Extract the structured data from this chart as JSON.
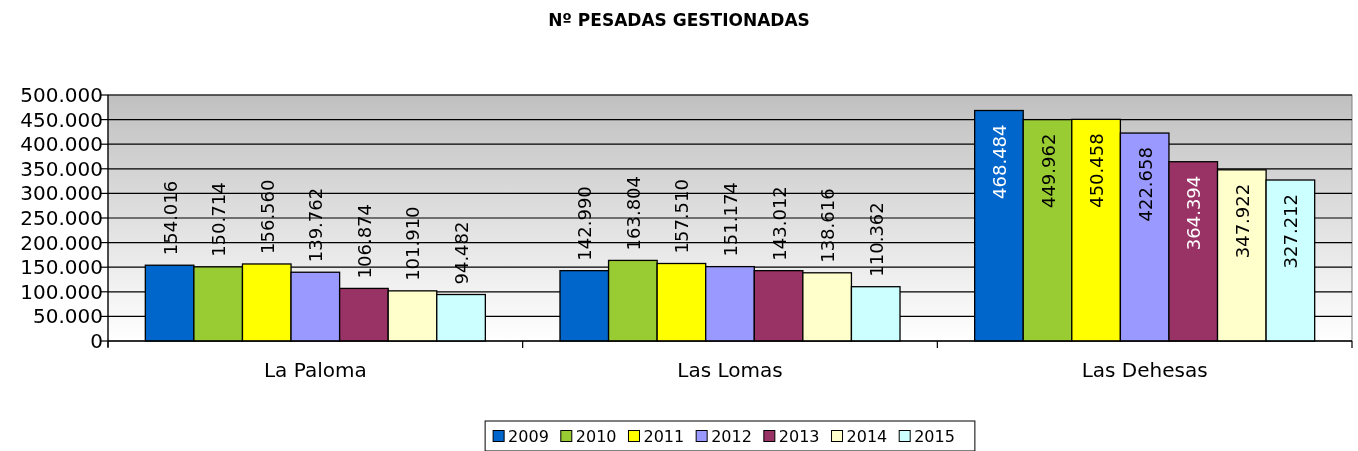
{
  "chart_data": {
    "type": "bar",
    "title": "Nº PESADAS GESTIONADAS",
    "categories": [
      "La Paloma",
      "Las Lomas",
      "Las Dehesas"
    ],
    "series": [
      {
        "name": "2009",
        "color": "#0066cc",
        "values": [
          154016,
          142990,
          468484
        ],
        "value_labels": [
          "154.016",
          "142.990",
          "468.484"
        ]
      },
      {
        "name": "2010",
        "color": "#99cc33",
        "values": [
          150714,
          163804,
          449962
        ],
        "value_labels": [
          "150.714",
          "163.804",
          "449.962"
        ]
      },
      {
        "name": "2011",
        "color": "#ffff00",
        "values": [
          156560,
          157510,
          450458
        ],
        "value_labels": [
          "156.560",
          "157.510",
          "450.458"
        ]
      },
      {
        "name": "2012",
        "color": "#9999ff",
        "values": [
          139762,
          151174,
          422658
        ],
        "value_labels": [
          "139.762",
          "151.174",
          "422.658"
        ]
      },
      {
        "name": "2013",
        "color": "#993366",
        "values": [
          106874,
          143012,
          364394
        ],
        "value_labels": [
          "106.874",
          "143.012",
          "364.394"
        ]
      },
      {
        "name": "2014",
        "color": "#ffffcc",
        "values": [
          101910,
          138616,
          347922
        ],
        "value_labels": [
          "101.910",
          "138.616",
          "347.922"
        ]
      },
      {
        "name": "2015",
        "color": "#ccffff",
        "values": [
          94482,
          110362,
          327212
        ],
        "value_labels": [
          "94.482",
          "110.362",
          "327.212"
        ]
      }
    ],
    "ylim": [
      0,
      500000
    ],
    "yticks": [
      0,
      {
        "value": 50000,
        "label": "50.000"
      },
      {
        "value": 100000,
        "label": "100.000"
      },
      {
        "value": 150000,
        "label": "150.000"
      },
      {
        "value": 200000,
        "label": "200.000"
      },
      {
        "value": 250000,
        "label": "250.000"
      },
      {
        "value": 300000,
        "label": "300.000"
      },
      {
        "value": 350000,
        "label": "350.000"
      },
      {
        "value": 400000,
        "label": "400.000"
      },
      {
        "value": 450000,
        "label": "450.000"
      },
      {
        "value": 500000,
        "label": "500.000"
      }
    ],
    "grid": "y",
    "legend": "bottom"
  }
}
